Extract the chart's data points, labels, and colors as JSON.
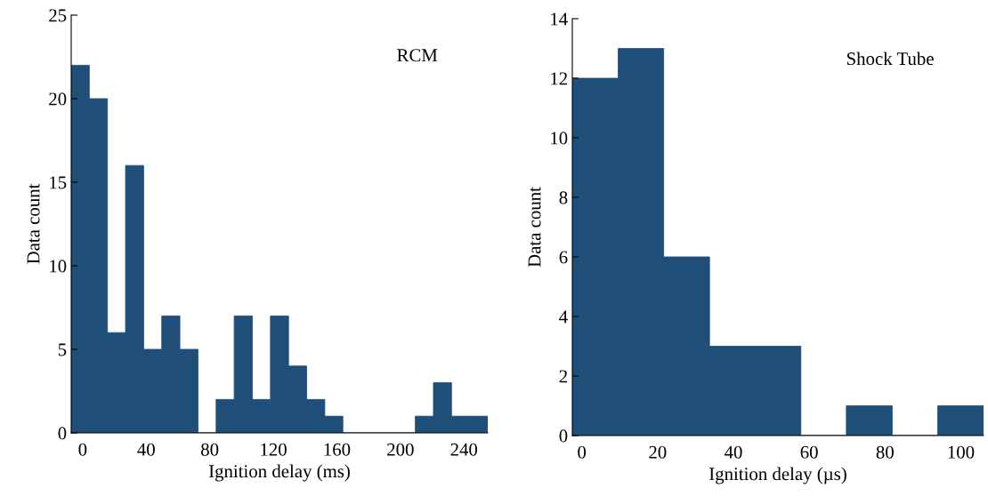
{
  "chart_data": [
    {
      "type": "histogram",
      "xlabel": "Ignition delay (ms)",
      "ylabel": "Data count",
      "annotations": [
        "RCM"
      ],
      "color": "#1f4e79",
      "bins": [
        -7.2,
        4.2,
        15.6,
        27,
        38.4,
        49.8,
        61.2,
        72.6,
        84,
        95.4,
        106.8,
        118.2,
        129.6,
        141,
        152.4,
        163.8,
        175.2,
        186.6,
        198,
        209.4,
        220.8,
        232.2,
        243.6,
        255
      ],
      "values": [
        22,
        20,
        6,
        16,
        5,
        7,
        5,
        0,
        2,
        7,
        2,
        7,
        4,
        2,
        1,
        0,
        0,
        0,
        0,
        1,
        3,
        1,
        1
      ],
      "xlim": [
        -7.2,
        255
      ],
      "xticks": [
        0,
        40,
        80,
        120,
        160,
        200,
        240
      ],
      "ylim": [
        0,
        25
      ],
      "yticks": [
        0,
        5,
        10,
        15,
        20,
        25
      ],
      "grid": false
    },
    {
      "type": "histogram",
      "xlabel": "Ignition delay (µs)",
      "ylabel": "Data count",
      "annotations": [
        "Shock Tube"
      ],
      "color": "#1f4e79",
      "bins": [
        -2.5,
        9.6,
        21.6,
        33.7,
        45.7,
        57.8,
        69.8,
        81.9,
        93.9,
        106
      ],
      "values": [
        12,
        13,
        6,
        3,
        3,
        0,
        1,
        0,
        1
      ],
      "xlim": [
        -2.5,
        106
      ],
      "xticks": [
        0,
        20,
        40,
        60,
        80,
        100
      ],
      "ylim": [
        0,
        14
      ],
      "yticks": [
        0,
        2,
        4,
        6,
        8,
        10,
        12,
        14
      ],
      "grid": false
    }
  ]
}
